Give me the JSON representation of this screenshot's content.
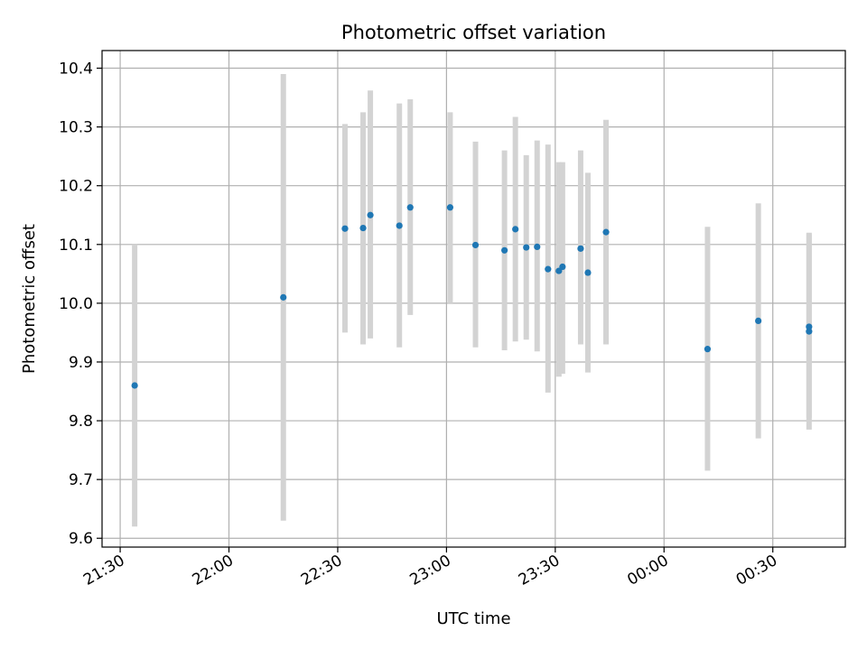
{
  "chart_data": {
    "type": "scatter",
    "title": "Photometric offset variation",
    "xlabel": "UTC time",
    "ylabel": "Photometric offset",
    "x_ticks": [
      "21:30",
      "22:00",
      "22:30",
      "23:00",
      "23:30",
      "00:00",
      "00:30"
    ],
    "x_tick_minutes": [
      0,
      30,
      60,
      90,
      120,
      150,
      180
    ],
    "xlim_minutes": [
      -5,
      200
    ],
    "ylim": [
      9.585,
      10.43
    ],
    "y_ticks": [
      9.6,
      9.7,
      9.8,
      9.9,
      10.0,
      10.1,
      10.2,
      10.3,
      10.4
    ],
    "grid": true,
    "colors": {
      "points": "#1f77b4",
      "errorbars": "#d3d3d3",
      "grid": "#b0b0b0"
    },
    "series": [
      {
        "points": [
          {
            "t": "21:34",
            "y": 9.86,
            "lo": 9.62,
            "hi": 10.1
          },
          {
            "t": "22:15",
            "y": 10.01,
            "lo": 9.63,
            "hi": 10.39
          },
          {
            "t": "22:32",
            "y": 10.127,
            "lo": 9.95,
            "hi": 10.305
          },
          {
            "t": "22:37",
            "y": 10.128,
            "lo": 9.93,
            "hi": 10.325
          },
          {
            "t": "22:39",
            "y": 10.15,
            "lo": 9.94,
            "hi": 10.362
          },
          {
            "t": "22:47",
            "y": 10.132,
            "lo": 9.925,
            "hi": 10.34
          },
          {
            "t": "22:50",
            "y": 10.163,
            "lo": 9.98,
            "hi": 10.347
          },
          {
            "t": "23:01",
            "y": 10.163,
            "lo": 10.0,
            "hi": 10.325
          },
          {
            "t": "23:08",
            "y": 10.099,
            "lo": 9.925,
            "hi": 10.275
          },
          {
            "t": "23:16",
            "y": 10.09,
            "lo": 9.92,
            "hi": 10.26
          },
          {
            "t": "23:19",
            "y": 10.126,
            "lo": 9.935,
            "hi": 10.317
          },
          {
            "t": "23:22",
            "y": 10.095,
            "lo": 9.938,
            "hi": 10.252
          },
          {
            "t": "23:25",
            "y": 10.096,
            "lo": 9.918,
            "hi": 10.277
          },
          {
            "t": "23:28",
            "y": 10.058,
            "lo": 9.848,
            "hi": 10.27
          },
          {
            "t": "23:31",
            "y": 10.055,
            "lo": 9.875,
            "hi": 10.24
          },
          {
            "t": "23:32",
            "y": 10.062,
            "lo": 9.88,
            "hi": 10.24
          },
          {
            "t": "23:37",
            "y": 10.093,
            "lo": 9.93,
            "hi": 10.26
          },
          {
            "t": "23:39",
            "y": 10.052,
            "lo": 9.882,
            "hi": 10.222
          },
          {
            "t": "23:44",
            "y": 10.121,
            "lo": 9.93,
            "hi": 10.312
          },
          {
            "t": "00:12",
            "y": 9.922,
            "lo": 9.715,
            "hi": 10.13
          },
          {
            "t": "00:26",
            "y": 9.97,
            "lo": 9.77,
            "hi": 10.17
          },
          {
            "t": "00:40",
            "y": 9.952,
            "lo": 9.785,
            "hi": 10.12
          },
          {
            "t": "00:40",
            "y": 9.96,
            "lo": 9.805,
            "hi": 10.118
          }
        ]
      }
    ]
  }
}
